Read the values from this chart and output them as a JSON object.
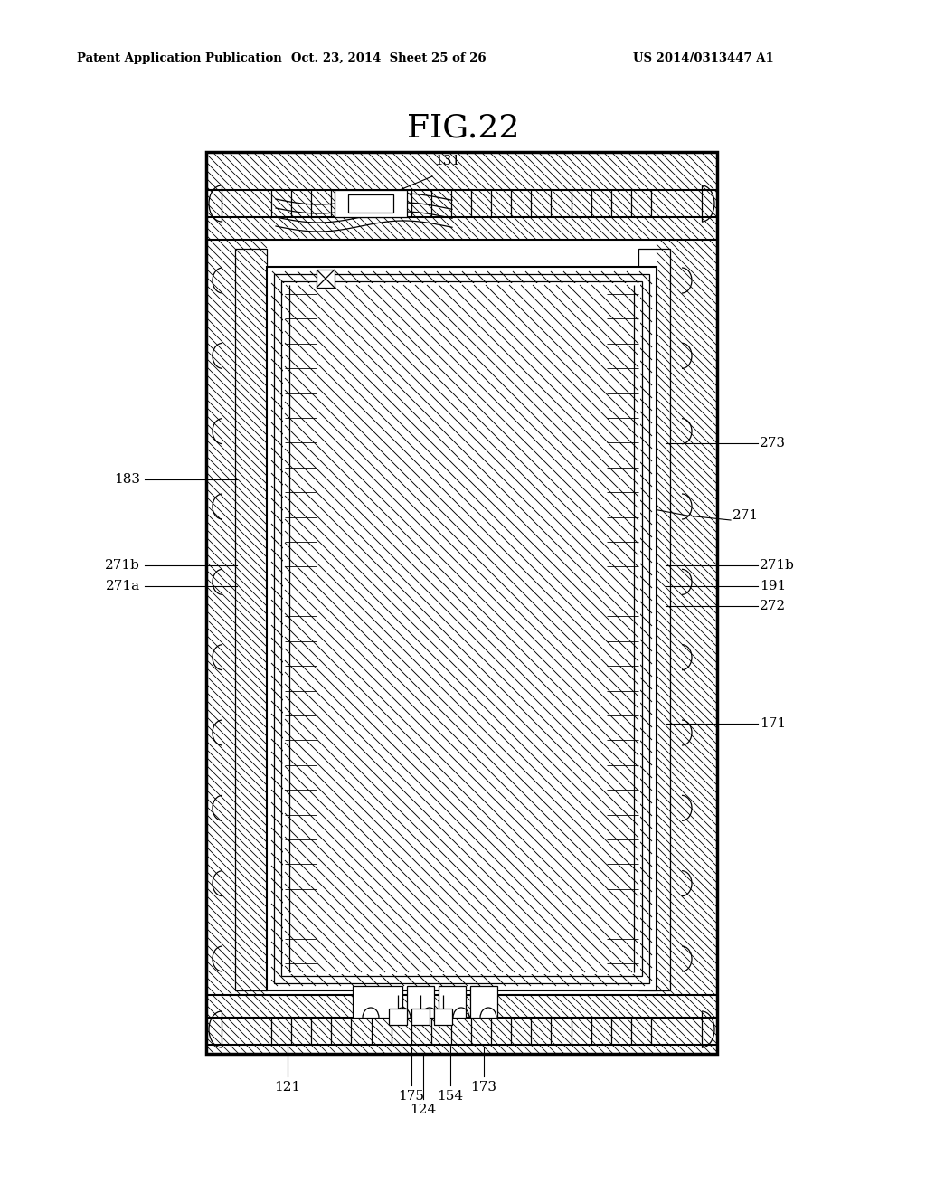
{
  "title": "FIG.22",
  "header_left": "Patent Application Publication",
  "header_mid": "Oct. 23, 2014  Sheet 25 of 26",
  "header_right": "US 2014/0313447 A1",
  "bg_color": "#ffffff",
  "line_color": "#000000",
  "fig_width": 10.24,
  "fig_height": 13.2,
  "dpi": 100
}
